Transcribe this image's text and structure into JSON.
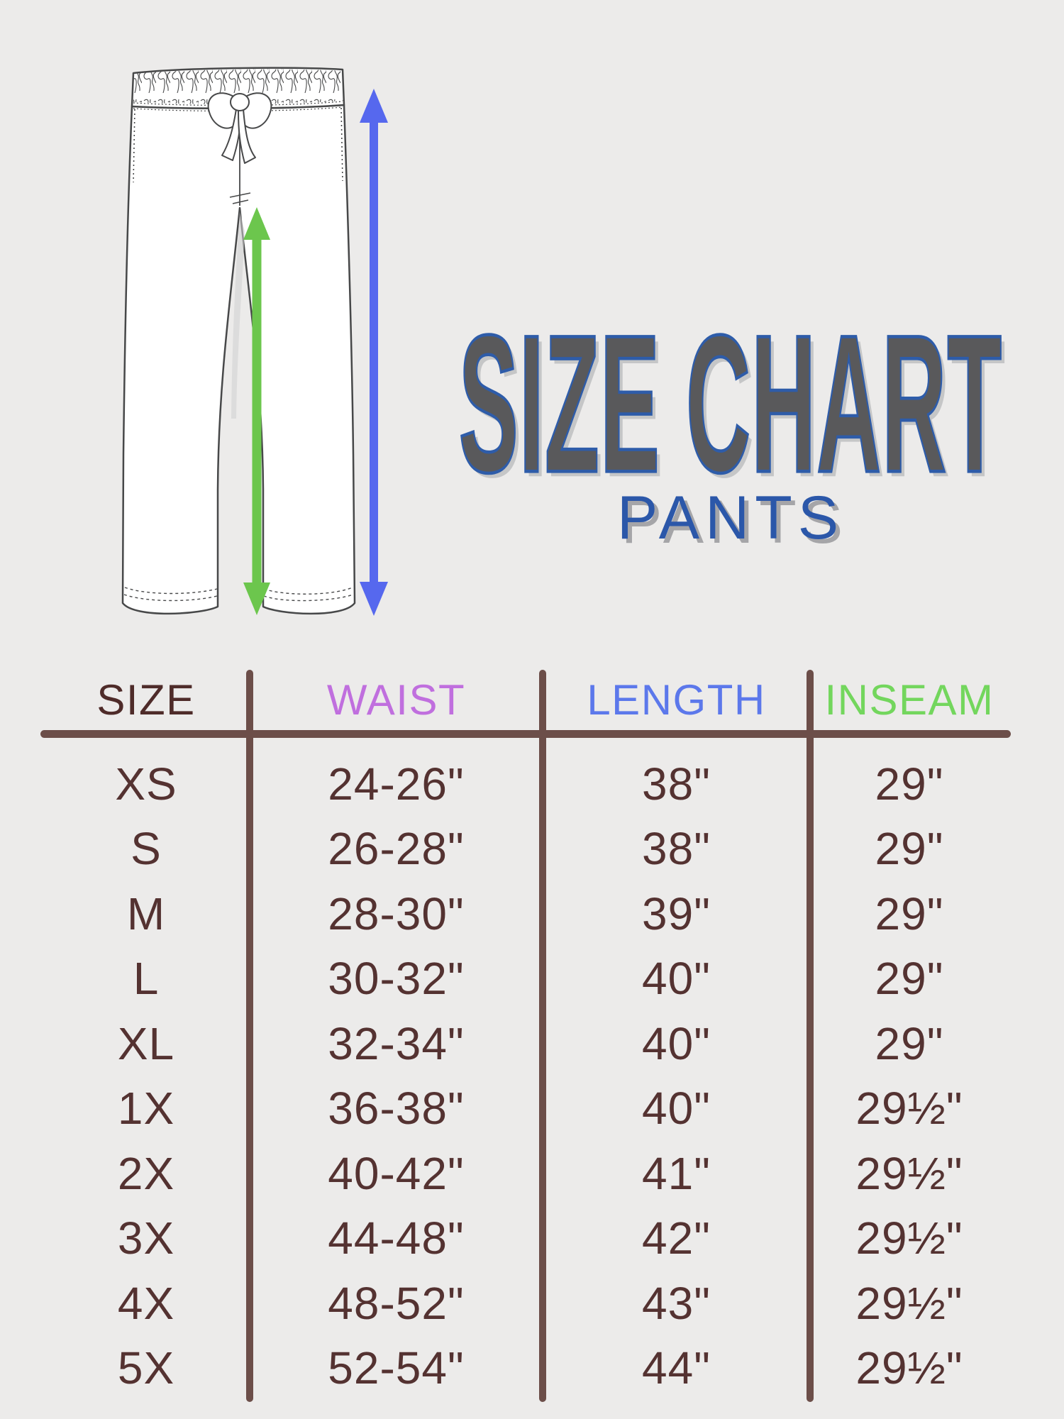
{
  "page": {
    "background": "#ECEBEA"
  },
  "title": {
    "text": "SIZE CHART",
    "subtitle": "PANTS",
    "title_fill": "#59595B",
    "title_outline": "#2E5CA9",
    "subtitle_color": "#2B57A9"
  },
  "diagram": {
    "sketch": "pants-with-drawstring-line-art",
    "outline_color": "#474849",
    "length_arrow_color": "#5668EE",
    "inseam_arrow_color": "#6CC64D"
  },
  "chart_data": {
    "type": "table",
    "title": "SIZE CHART",
    "subtitle": "PANTS",
    "text_color": "#543231",
    "rule_color": "#6C4E49",
    "columns": [
      {
        "label": "SIZE",
        "color": "#4E2B29"
      },
      {
        "label": "WAIST",
        "color": "#C06FDE"
      },
      {
        "label": "LENGTH",
        "color": "#5C78EB"
      },
      {
        "label": "INSEAM",
        "color": "#73D65D"
      }
    ],
    "rows": [
      [
        "XS",
        "24-26\"",
        "38\"",
        "29\""
      ],
      [
        "S",
        "26-28\"",
        "38\"",
        "29\""
      ],
      [
        "M",
        "28-30\"",
        "39\"",
        "29\""
      ],
      [
        "L",
        "30-32\"",
        "40\"",
        "29\""
      ],
      [
        "XL",
        "32-34\"",
        "40\"",
        "29\""
      ],
      [
        "1X",
        "36-38\"",
        "40\"",
        "29½\""
      ],
      [
        "2X",
        "40-42\"",
        "41\"",
        "29½\""
      ],
      [
        "3X",
        "44-48\"",
        "42\"",
        "29½\""
      ],
      [
        "4X",
        "48-52\"",
        "43\"",
        "29½\""
      ],
      [
        "5X",
        "52-54\"",
        "44\"",
        "29½\""
      ]
    ]
  }
}
